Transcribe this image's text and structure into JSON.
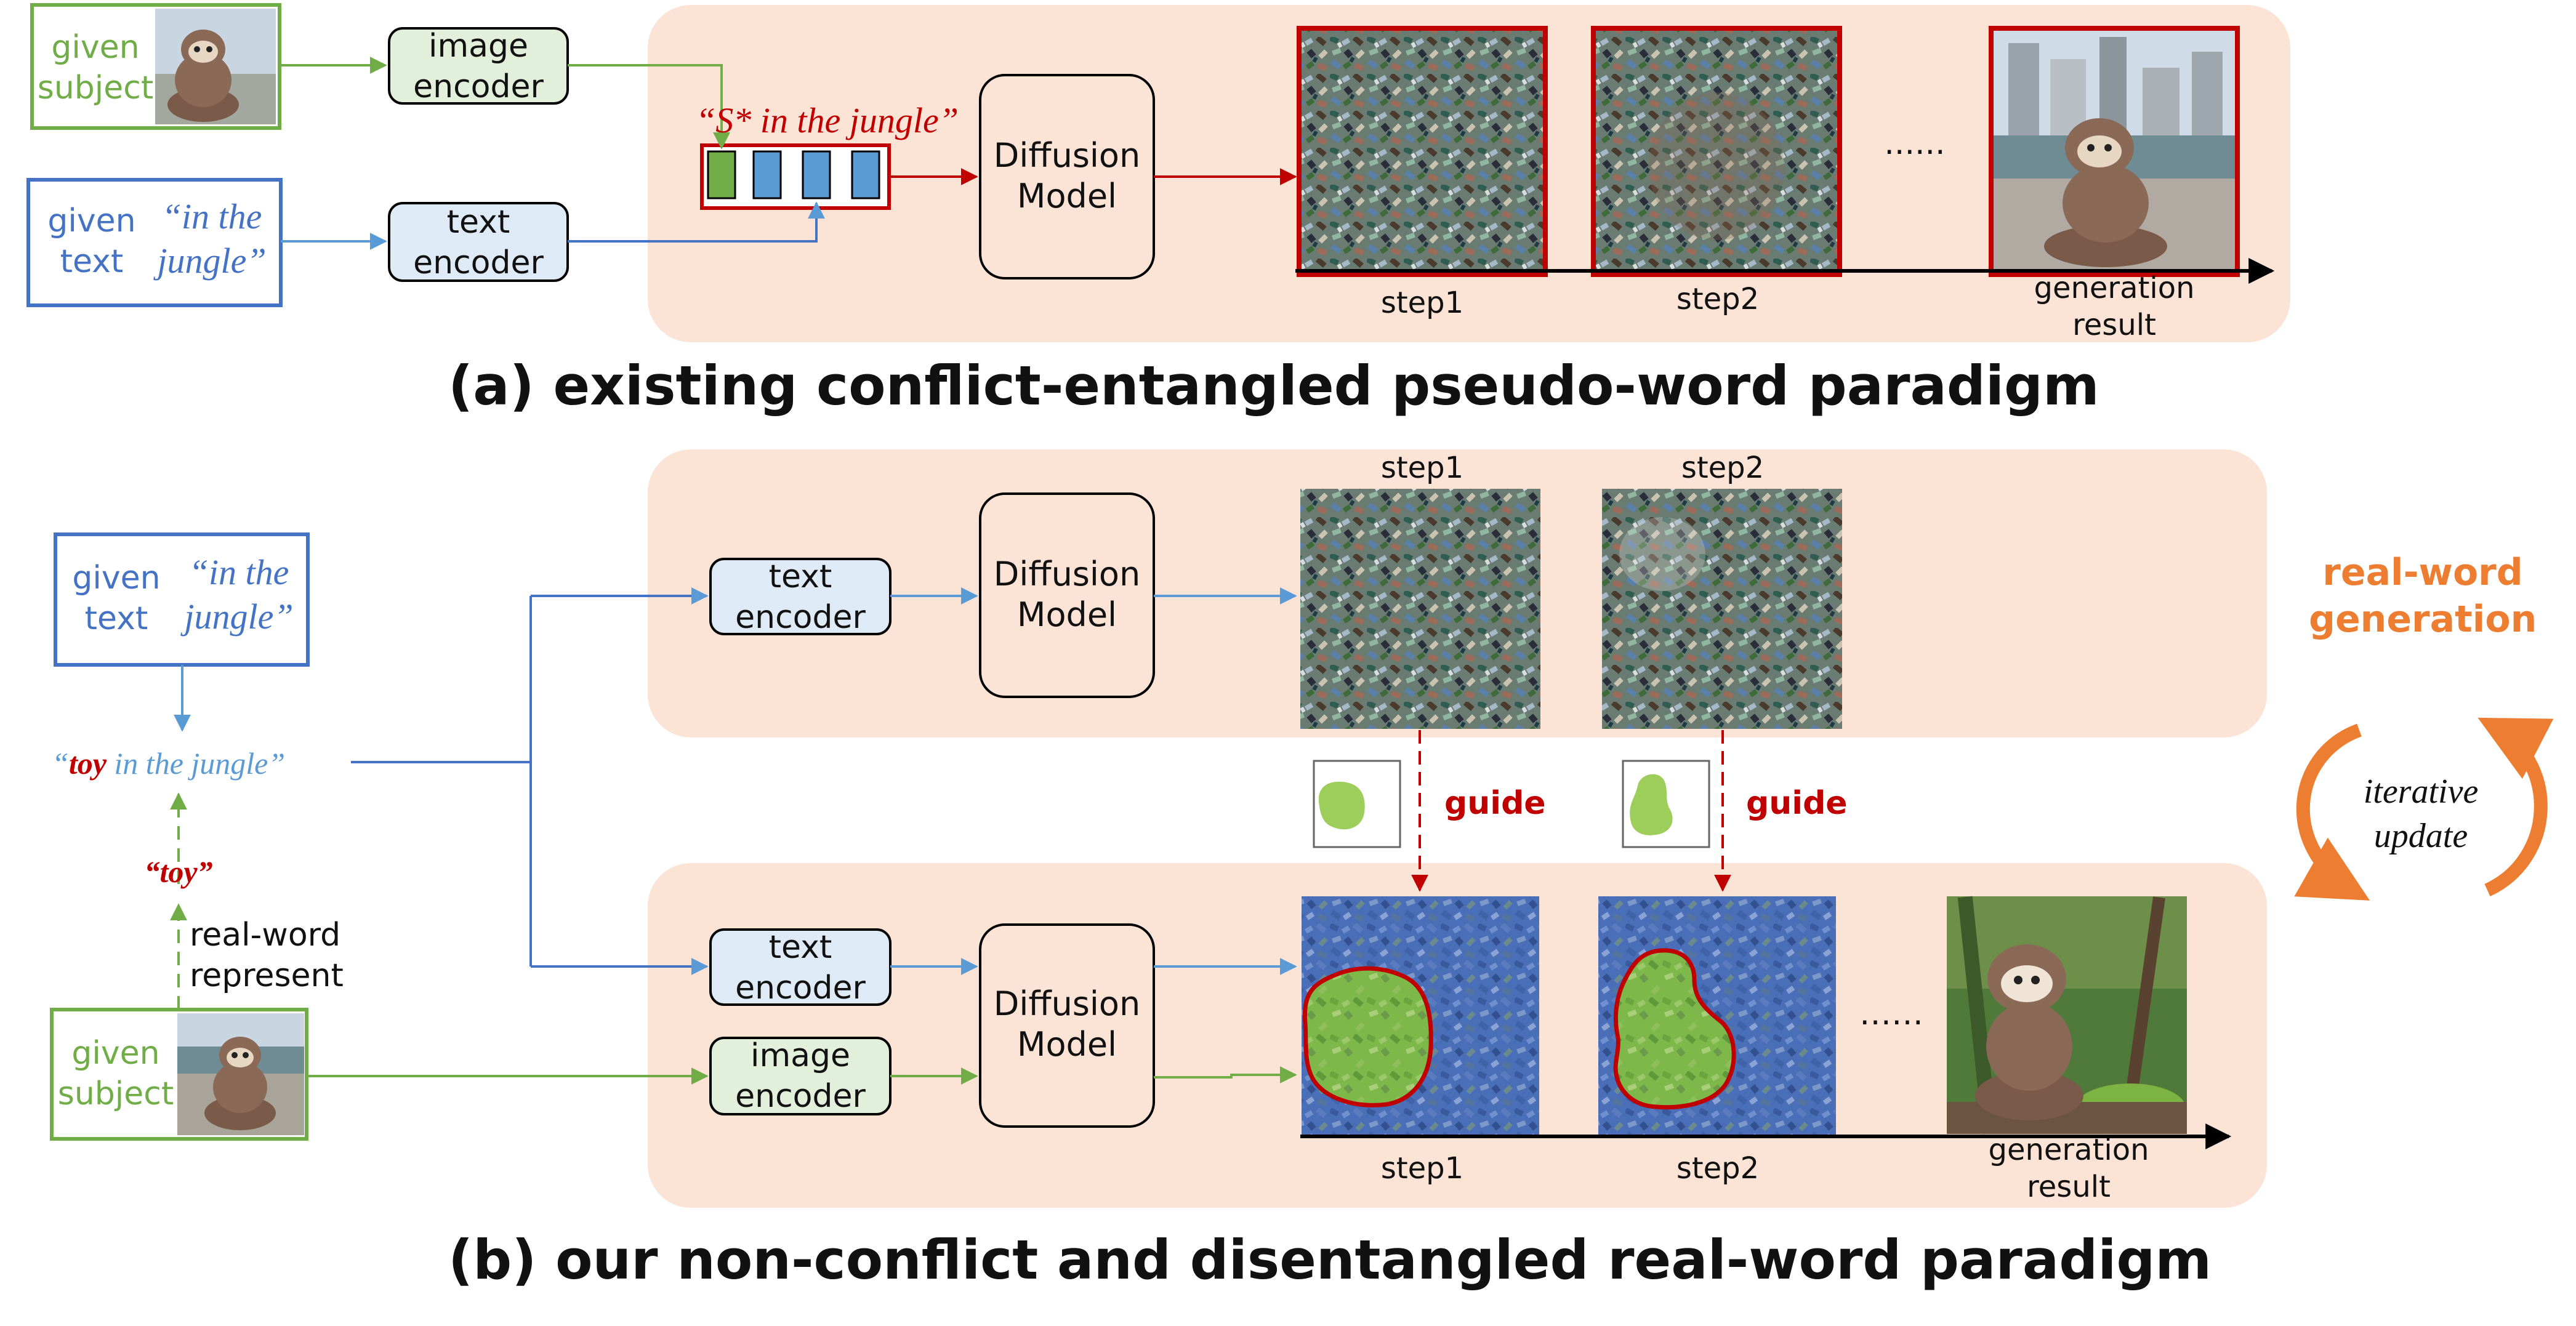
{
  "colors": {
    "panel": "#fbe3d6",
    "green": "#70ad47",
    "green_fill": "#e2efda",
    "blue": "#4472c4",
    "blue_fill": "#deebf7",
    "red": "#c00000",
    "orange": "#ed7d31",
    "token_green": "#70ad47",
    "token_blue": "#5b9bd5",
    "noise_blue": "#4a6fb8",
    "mask_green": "#8cc63f"
  },
  "part_a": {
    "given_subject": [
      "given",
      "subject"
    ],
    "given_text_label": [
      "given",
      "text"
    ],
    "given_text_quote": [
      "“in the",
      "jungle”"
    ],
    "image_encoder": [
      "image",
      "encoder"
    ],
    "text_encoder": [
      "text",
      "encoder"
    ],
    "prompt": "“S* in the jungle”",
    "diffusion_model": [
      "Diffusion",
      "Model"
    ],
    "ellipsis": "......",
    "step1": "step1",
    "step2": "step2",
    "generation_result": [
      "generation",
      "result"
    ],
    "caption": "(a) existing conflict-entangled pseudo-word paradigm"
  },
  "part_b": {
    "given_text_label": [
      "given",
      "text"
    ],
    "given_text_quote": [
      "“in the",
      "jungle”"
    ],
    "prompt_word": "toy",
    "prompt_rest": " in the jungle”",
    "prompt_open": "“",
    "toy": "“toy”",
    "real_word_represent": [
      "real-word",
      "represent"
    ],
    "given_subject": [
      "given",
      "subject"
    ],
    "text_encoder_top": [
      "text",
      "encoder"
    ],
    "text_encoder_bottom": [
      "text",
      "encoder"
    ],
    "image_encoder": [
      "image",
      "encoder"
    ],
    "diffusion_model_top": [
      "Diffusion",
      "Model"
    ],
    "diffusion_model_bottom": [
      "Diffusion",
      "Model"
    ],
    "step1_top": "step1",
    "step2_top": "step2",
    "guide": "guide",
    "ellipsis": "……",
    "step1_bottom": "step1",
    "step2_bottom": "step2",
    "generation_result": [
      "generation",
      "result"
    ],
    "real_word_generation": [
      "real-word",
      "generation"
    ],
    "iterative_update": [
      "iterative",
      "update"
    ],
    "caption": "(b) our non-conflict and disentangled real-word paradigm"
  }
}
